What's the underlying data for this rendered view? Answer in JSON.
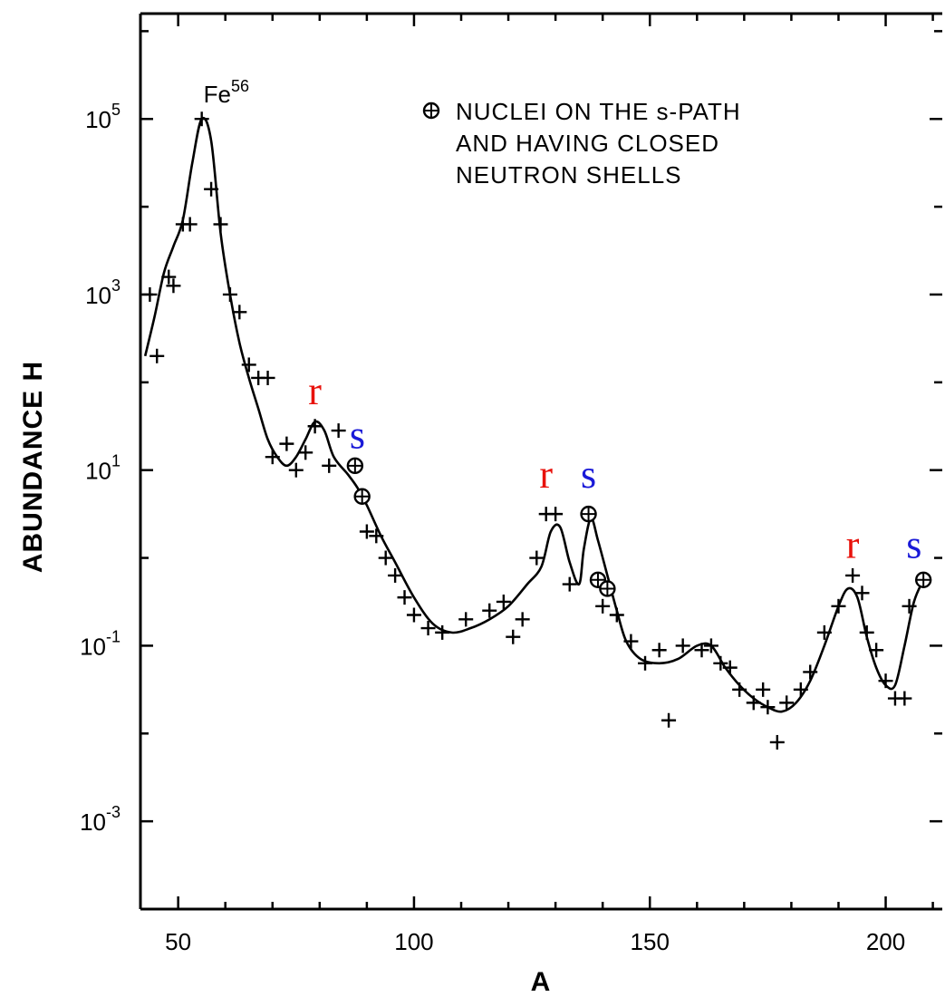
{
  "chart_data": {
    "type": "scatter",
    "xlabel": "A",
    "ylabel": "ABUNDANCE H",
    "xlim": [
      42,
      212
    ],
    "ylim": [
      -4,
      6.2
    ],
    "y_scale": "log",
    "grid": false,
    "x_ticks": [
      {
        "value": 50,
        "label": "50"
      },
      {
        "value": 100,
        "label": "100"
      },
      {
        "value": 150,
        "label": "150"
      },
      {
        "value": 200,
        "label": "200"
      }
    ],
    "y_ticks": [
      {
        "value": 5,
        "base": "10",
        "exp": "5"
      },
      {
        "value": 3,
        "base": "10",
        "exp": "3"
      },
      {
        "value": 1,
        "base": "10",
        "exp": "1"
      },
      {
        "value": -1,
        "base": "10",
        "exp": "-1"
      },
      {
        "value": -3,
        "base": "10",
        "exp": "-3"
      }
    ],
    "legend": {
      "position": "top-right",
      "lines": [
        "NUCLEI ON THE s-PATH",
        "AND HAVING CLOSED",
        "NEUTRON SHELLS"
      ]
    },
    "annotation": {
      "text": "Fe",
      "sup": "56",
      "x": 55,
      "y": 5.0
    },
    "series": [
      {
        "marker": "plus",
        "points": [
          [
            44,
            3.0
          ],
          [
            45.5,
            2.3
          ],
          [
            48,
            3.2
          ],
          [
            49,
            3.1
          ],
          [
            51,
            3.8
          ],
          [
            52.5,
            3.8
          ],
          [
            55,
            5.0
          ],
          [
            57,
            4.2
          ],
          [
            59,
            3.8
          ],
          [
            61,
            3.0
          ],
          [
            63,
            2.8
          ],
          [
            65,
            2.2
          ],
          [
            67,
            2.05
          ],
          [
            69,
            2.05
          ],
          [
            70,
            1.15
          ],
          [
            73,
            1.3
          ],
          [
            75,
            1.0
          ],
          [
            77,
            1.2
          ],
          [
            79,
            1.5
          ],
          [
            82,
            1.05
          ],
          [
            84,
            1.45
          ],
          [
            90,
            0.3
          ],
          [
            92,
            0.25
          ],
          [
            94,
            0.0
          ],
          [
            96,
            -0.2
          ],
          [
            98,
            -0.45
          ],
          [
            100,
            -0.65
          ],
          [
            103,
            -0.8
          ],
          [
            106,
            -0.85
          ],
          [
            111,
            -0.7
          ],
          [
            116,
            -0.6
          ],
          [
            119,
            -0.5
          ],
          [
            121,
            -0.9
          ],
          [
            123,
            -0.7
          ],
          [
            126,
            0.0
          ],
          [
            128,
            0.5
          ],
          [
            130,
            0.5
          ],
          [
            133,
            -0.3
          ],
          [
            140,
            -0.55
          ],
          [
            143,
            -0.65
          ],
          [
            146,
            -0.95
          ],
          [
            149,
            -1.2
          ],
          [
            152,
            -1.05
          ],
          [
            154,
            -1.85
          ],
          [
            157,
            -1.0
          ],
          [
            161,
            -1.05
          ],
          [
            163,
            -1.0
          ],
          [
            165,
            -1.2
          ],
          [
            167,
            -1.25
          ],
          [
            169,
            -1.5
          ],
          [
            172,
            -1.65
          ],
          [
            174,
            -1.5
          ],
          [
            175,
            -1.7
          ],
          [
            177,
            -2.1
          ],
          [
            179,
            -1.65
          ],
          [
            182,
            -1.5
          ],
          [
            184,
            -1.3
          ],
          [
            187,
            -0.85
          ],
          [
            190,
            -0.55
          ],
          [
            193,
            -0.2
          ],
          [
            195,
            -0.4
          ],
          [
            196,
            -0.85
          ],
          [
            198,
            -1.05
          ],
          [
            200,
            -1.4
          ],
          [
            202,
            -1.6
          ],
          [
            204,
            -1.6
          ],
          [
            205,
            -0.55
          ]
        ]
      },
      {
        "name": "NUCLEI ON THE s-PATH AND HAVING CLOSED NEUTRON SHELLS",
        "marker": "circled-plus",
        "points": [
          [
            87.5,
            1.05
          ],
          [
            89,
            0.7
          ],
          [
            137,
            0.5
          ],
          [
            139,
            -0.25
          ],
          [
            141,
            -0.35
          ],
          [
            208,
            -0.25
          ]
        ]
      }
    ],
    "curve": [
      [
        43,
        2.3
      ],
      [
        45,
        2.75
      ],
      [
        47,
        3.25
      ],
      [
        49,
        3.55
      ],
      [
        51,
        3.85
      ],
      [
        53,
        4.5
      ],
      [
        55,
        5.0
      ],
      [
        57,
        4.75
      ],
      [
        59,
        3.7
      ],
      [
        61,
        3.0
      ],
      [
        63,
        2.45
      ],
      [
        65,
        2.05
      ],
      [
        67,
        1.7
      ],
      [
        69,
        1.35
      ],
      [
        71,
        1.15
      ],
      [
        73,
        1.05
      ],
      [
        75,
        1.15
      ],
      [
        77,
        1.35
      ],
      [
        79,
        1.55
      ],
      [
        81,
        1.45
      ],
      [
        83,
        1.15
      ],
      [
        86,
        0.95
      ],
      [
        88,
        0.8
      ],
      [
        90,
        0.6
      ],
      [
        93,
        0.25
      ],
      [
        96,
        -0.05
      ],
      [
        100,
        -0.45
      ],
      [
        104,
        -0.75
      ],
      [
        108,
        -0.85
      ],
      [
        112,
        -0.8
      ],
      [
        116,
        -0.7
      ],
      [
        120,
        -0.55
      ],
      [
        124,
        -0.3
      ],
      [
        127,
        -0.1
      ],
      [
        129,
        0.3
      ],
      [
        131,
        0.35
      ],
      [
        133,
        -0.05
      ],
      [
        135,
        -0.3
      ],
      [
        136,
        0.1
      ],
      [
        137.5,
        0.45
      ],
      [
        139,
        0.2
      ],
      [
        141,
        -0.2
      ],
      [
        143,
        -0.6
      ],
      [
        145,
        -0.95
      ],
      [
        148,
        -1.15
      ],
      [
        152,
        -1.2
      ],
      [
        156,
        -1.15
      ],
      [
        160,
        -1.0
      ],
      [
        163,
        -1.0
      ],
      [
        166,
        -1.25
      ],
      [
        169,
        -1.45
      ],
      [
        172,
        -1.6
      ],
      [
        175,
        -1.7
      ],
      [
        178,
        -1.75
      ],
      [
        181,
        -1.65
      ],
      [
        184,
        -1.4
      ],
      [
        187,
        -1.0
      ],
      [
        190,
        -0.55
      ],
      [
        192,
        -0.35
      ],
      [
        194,
        -0.45
      ],
      [
        196,
        -0.9
      ],
      [
        198,
        -1.25
      ],
      [
        200,
        -1.45
      ],
      [
        202,
        -1.45
      ],
      [
        204,
        -1.0
      ],
      [
        206,
        -0.5
      ],
      [
        208,
        -0.25
      ]
    ],
    "peak_labels": [
      {
        "text": "r",
        "x": 79,
        "y": 1.75,
        "color": "#e8120c"
      },
      {
        "text": "s",
        "x": 88,
        "y": 1.25,
        "color": "#1a1ad8"
      },
      {
        "text": "r",
        "x": 128,
        "y": 0.8,
        "color": "#e8120c"
      },
      {
        "text": "s",
        "x": 137,
        "y": 0.8,
        "color": "#1a1ad8"
      },
      {
        "text": "r",
        "x": 193,
        "y": 0.0,
        "color": "#e8120c"
      },
      {
        "text": "s",
        "x": 206,
        "y": 0.0,
        "color": "#1a1ad8"
      }
    ]
  }
}
